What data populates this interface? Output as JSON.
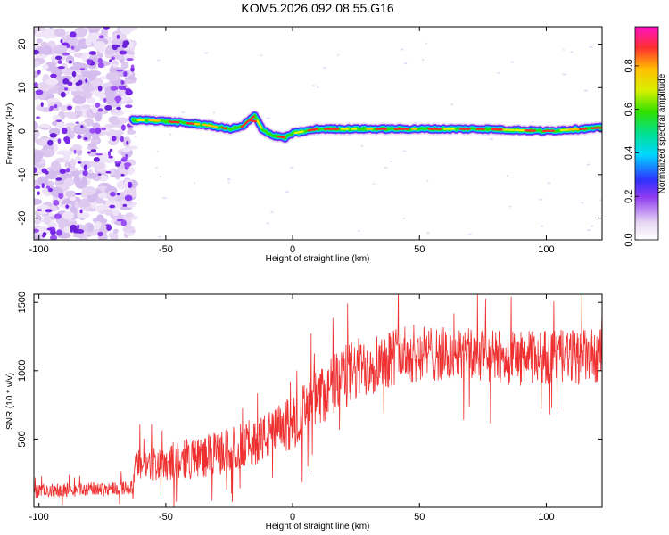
{
  "title": "KOM5.2026.092.08.55.G16",
  "chart_data": [
    {
      "type": "heatmap",
      "xlabel": "Height of straight line (km)",
      "ylabel": "Frequency (Hz)",
      "xlim": [
        -102,
        122
      ],
      "ylim": [
        -25,
        24
      ],
      "xticks": [
        -100,
        -50,
        0,
        50,
        100
      ],
      "yticks": [
        -20,
        -10,
        0,
        10,
        20
      ],
      "colorbar": {
        "label": "Normalized spectral amplitude",
        "range": [
          0,
          0.98
        ],
        "ticks": [
          0.0,
          0.2,
          0.4,
          0.6,
          0.8
        ]
      },
      "noise_region_x": [
        -102,
        -63
      ],
      "signal_onset_x": -63,
      "ridge": {
        "x": [
          -63,
          -55,
          -45,
          -35,
          -25,
          -20,
          -17,
          -15,
          -12,
          -8,
          -3,
          0,
          10,
          25,
          50,
          75,
          100,
          122
        ],
        "freq": [
          2.5,
          2.5,
          2.0,
          1.5,
          0.5,
          1.0,
          2.5,
          3.5,
          0.5,
          -1.0,
          -1.5,
          -0.5,
          0.5,
          0.5,
          0.5,
          0.5,
          0.0,
          0.8
        ]
      }
    },
    {
      "type": "line",
      "xlabel": "Height of straight line (km)",
      "ylabel": "SNR (10 * v/v)",
      "xlim": [
        -102,
        122
      ],
      "ylim": [
        0,
        1560
      ],
      "xticks": [
        -100,
        -50,
        0,
        50,
        100
      ],
      "yticks": [
        500,
        1000,
        1500
      ],
      "series": [
        {
          "color": "#ee3030",
          "envelope_x": [
            -102,
            -90,
            -80,
            -70,
            -63,
            -62,
            -50,
            -40,
            -30,
            -20,
            -10,
            0,
            10,
            20,
            30,
            40,
            50,
            60,
            70,
            80,
            90,
            100,
            110,
            122
          ],
          "envelope_mean": [
            115,
            125,
            135,
            140,
            145,
            300,
            330,
            360,
            390,
            450,
            520,
            620,
            800,
            950,
            1050,
            1110,
            1130,
            1120,
            1110,
            1100,
            1090,
            1100,
            1100,
            1110
          ],
          "envelope_spread": [
            50,
            50,
            50,
            50,
            50,
            120,
            140,
            150,
            160,
            170,
            180,
            200,
            220,
            240,
            230,
            220,
            210,
            200,
            200,
            200,
            200,
            200,
            200,
            200
          ]
        }
      ]
    }
  ]
}
